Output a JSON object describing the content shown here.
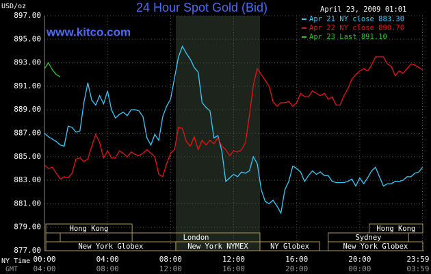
{
  "chart_data": {
    "type": "line",
    "title": "24 Hour Spot Gold (Bid)",
    "date": "April 23, 2009 01:01",
    "ylabel": "USD/oz",
    "watermark": "www.kitco.com",
    "xlabel": "NY Time",
    "x2label": "GMT",
    "xlim": [
      0,
      24
    ],
    "ylim": [
      877,
      897
    ],
    "xticks": [
      {
        "value": 0,
        "label": "00:00"
      },
      {
        "value": 4,
        "label": "04:00"
      },
      {
        "value": 8,
        "label": "08:00"
      },
      {
        "value": 12,
        "label": "12:00"
      },
      {
        "value": 16,
        "label": "16:00"
      },
      {
        "value": 20,
        "label": "20:00"
      },
      {
        "value": 23.98,
        "label": "23:59"
      }
    ],
    "x2ticks": [
      "04:00",
      "08:00",
      "12:00",
      "16:00",
      "20:00",
      "00:00",
      "03:59"
    ],
    "yticks": [
      {
        "value": 877,
        "label": "877.00"
      },
      {
        "value": 879,
        "label": "879.00"
      },
      {
        "value": 881,
        "label": "881.00"
      },
      {
        "value": 883,
        "label": "883.00"
      },
      {
        "value": 885,
        "label": "885.00"
      },
      {
        "value": 887,
        "label": "887.00"
      },
      {
        "value": 889,
        "label": "889.00"
      },
      {
        "value": 891,
        "label": "891.00"
      },
      {
        "value": 893,
        "label": "893.00"
      },
      {
        "value": 895,
        "label": "895.00"
      },
      {
        "value": 897,
        "label": "897.00"
      }
    ],
    "grid": true,
    "x": [
      0,
      0.25,
      0.5,
      0.75,
      1,
      1.25,
      1.5,
      1.75,
      2,
      2.25,
      2.5,
      2.75,
      3,
      3.25,
      3.5,
      3.75,
      4,
      4.25,
      4.5,
      4.75,
      5,
      5.25,
      5.5,
      5.75,
      6,
      6.25,
      6.5,
      6.75,
      7,
      7.25,
      7.5,
      7.75,
      8,
      8.25,
      8.5,
      8.75,
      9,
      9.25,
      9.5,
      9.75,
      10,
      10.25,
      10.5,
      10.75,
      11,
      11.25,
      11.5,
      11.75,
      12,
      12.25,
      12.5,
      12.75,
      13,
      13.25,
      13.5,
      13.75,
      14,
      14.25,
      14.5,
      14.75,
      15,
      15.25,
      15.5,
      15.75,
      16,
      16.25,
      16.5,
      16.75,
      17,
      17.25,
      17.5,
      17.75,
      18,
      18.25,
      18.5,
      18.75,
      19,
      19.25,
      19.5,
      19.75,
      20,
      20.25,
      20.5,
      20.75,
      21,
      21.25,
      21.5,
      21.75,
      22,
      22.25,
      22.5,
      22.75,
      23,
      23.25,
      23.5,
      23.75,
      23.98
    ],
    "series": [
      {
        "name": "Apr 21 NY close 883.30",
        "color": "#33ccff",
        "values": [
          887.0,
          886.7,
          886.5,
          886.3,
          886.0,
          885.9,
          887.6,
          887.5,
          887.1,
          887.2,
          889.6,
          891.3,
          889.8,
          889.4,
          890.2,
          889.5,
          890.6,
          889.0,
          888.3,
          888.6,
          888.8,
          888.5,
          889.0,
          889.0,
          888.9,
          888.4,
          886.6,
          886.0,
          886.9,
          886.4,
          888.4,
          889.3,
          889.9,
          891.7,
          893.5,
          894.4,
          893.8,
          893.3,
          892.6,
          892.2,
          889.6,
          889.2,
          888.9,
          886.6,
          886.8,
          885.5,
          882.9,
          883.2,
          883.5,
          883.3,
          883.7,
          883.6,
          883.8,
          885.0,
          884.4,
          882.2,
          881.2,
          881.0,
          881.3,
          880.8,
          880.2,
          882.2,
          882.9,
          884.2,
          884.0,
          883.7,
          882.9,
          883.4,
          883.8,
          883.5,
          883.7,
          883.4,
          883.4,
          882.9,
          882.8,
          882.8,
          882.8,
          882.9,
          883.1,
          882.5,
          883.2,
          882.7,
          883.2,
          883.8,
          884.1,
          883.3,
          882.5,
          882.7,
          882.7,
          882.9,
          882.9,
          883.0,
          883.3,
          883.3,
          883.6,
          883.7,
          884.1
        ]
      },
      {
        "name": "Apr 22 NY close 890.70",
        "color": "#ee1111",
        "values": [
          884.3,
          884.0,
          884.1,
          883.6,
          883.1,
          883.3,
          883.2,
          883.6,
          884.8,
          884.9,
          884.6,
          884.8,
          885.9,
          886.9,
          886.2,
          884.9,
          885.5,
          884.9,
          884.9,
          885.5,
          885.3,
          885.0,
          885.4,
          885.2,
          885.1,
          885.3,
          885.6,
          885.3,
          885.0,
          883.5,
          883.3,
          884.4,
          885.3,
          885.6,
          887.5,
          887.4,
          886.3,
          885.9,
          886.7,
          885.6,
          886.4,
          886.0,
          886.4,
          886.1,
          886.6,
          885.9,
          885.6,
          885.1,
          885.5,
          885.4,
          885.6,
          886.2,
          888.5,
          891.1,
          892.5,
          892.0,
          891.5,
          891.0,
          889.7,
          889.3,
          889.6,
          889.6,
          889.7,
          889.3,
          889.6,
          890.4,
          890.1,
          890.1,
          890.6,
          890.4,
          890.2,
          890.4,
          889.9,
          890.1,
          889.4,
          889.4,
          890.2,
          890.8,
          891.6,
          892.0,
          892.3,
          892.5,
          892.3,
          892.8,
          893.5,
          893.5,
          893.5,
          892.9,
          892.7,
          891.9,
          892.3,
          892.1,
          892.5,
          892.9,
          892.8,
          892.6,
          892.4
        ]
      },
      {
        "name": "Apr 23 Last 891.10",
        "color": "#22cc22",
        "values": [
          892.5,
          893.0,
          892.4,
          892.0,
          891.8,
          null,
          null,
          null,
          null,
          null,
          null,
          null,
          null,
          null,
          null,
          null,
          null,
          null,
          null,
          null,
          null,
          null,
          null,
          null,
          null,
          null,
          null,
          null,
          null,
          null,
          null,
          null,
          null,
          null,
          null,
          null,
          null,
          null,
          null,
          null,
          null,
          null,
          null,
          null,
          null,
          null,
          null,
          null,
          null,
          null,
          null,
          null,
          null,
          null,
          null,
          null,
          null,
          null,
          null,
          null,
          null,
          null,
          null,
          null,
          null,
          null,
          null,
          null,
          null,
          null,
          null,
          null,
          null,
          null,
          null,
          null,
          null,
          null,
          null,
          null,
          null,
          null,
          null,
          null,
          null,
          null,
          null,
          null,
          null,
          null,
          null,
          null,
          null,
          null,
          null,
          null,
          null
        ]
      }
    ],
    "sessions": [
      [
        {
          "name": "Hong Kong",
          "start": 0,
          "end": 5.56
        },
        {
          "name": "Hong Kong",
          "start": 20.6,
          "end": 24
        }
      ],
      [
        {
          "name": "London",
          "start": 5.56,
          "end": 13.67
        },
        {
          "name": "Sydney",
          "start": 18,
          "end": 23.1
        }
      ],
      [
        {
          "name": "New York Globex",
          "start": 0,
          "end": 8.33
        },
        {
          "name": "New York NYMEX",
          "start": 8.33,
          "end": 13.67,
          "shade": true
        },
        {
          "name": "NY Globex",
          "start": 13.67,
          "end": 17.45
        },
        {
          "name": "New York Globex",
          "start": 18,
          "end": 24
        }
      ]
    ]
  }
}
